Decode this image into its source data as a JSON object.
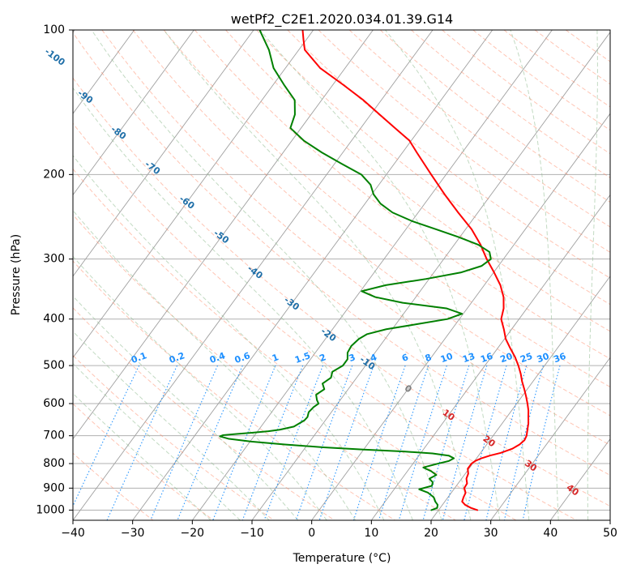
{
  "chart_data": {
    "type": "line",
    "subtype": "skew-T log-P diagram",
    "title": "wetPf2_C2E1.2020.034.01.39.G14",
    "xlabel": "Temperature (°C)",
    "ylabel": "Pressure (hPa)",
    "xlim": [
      -40,
      50
    ],
    "ylim": [
      1050,
      100
    ],
    "y_scale": "log",
    "x_ticks": [
      -40,
      -30,
      -20,
      -10,
      0,
      10,
      20,
      30,
      40,
      50
    ],
    "y_ticks": [
      100,
      200,
      300,
      400,
      500,
      600,
      700,
      800,
      900,
      1000
    ],
    "grid": true,
    "colors": {
      "temperature": "#ff0000",
      "dewpoint": "#008000",
      "dry_adiabats": "#ff8c69",
      "moist_adiabats": "#8fbc8f",
      "mixing_ratio": "#1e90ff",
      "isotherm": "#808080",
      "isotherm_label": "#1f6fa8",
      "warm_isotherm_label": "#d62728",
      "frame": "#000000"
    },
    "isotherm_labels": [
      {
        "value": -100,
        "pressure": 114
      },
      {
        "value": -90,
        "pressure": 138
      },
      {
        "value": -80,
        "pressure": 164
      },
      {
        "value": -70,
        "pressure": 194
      },
      {
        "value": -60,
        "pressure": 229
      },
      {
        "value": -50,
        "pressure": 270
      },
      {
        "value": -40,
        "pressure": 320
      },
      {
        "value": -30,
        "pressure": 372
      },
      {
        "value": -20,
        "pressure": 432
      },
      {
        "value": -10,
        "pressure": 495
      },
      {
        "value": 0,
        "pressure": 560
      },
      {
        "value": 10,
        "pressure": 635
      },
      {
        "value": 20,
        "pressure": 720
      },
      {
        "value": 30,
        "pressure": 810
      },
      {
        "value": 40,
        "pressure": 910
      }
    ],
    "mixing_ratio_labels": [
      "0.1",
      "0.2",
      "0.4",
      "0.6",
      "1",
      "1.5",
      "2",
      "3",
      "4",
      "6",
      "8",
      "10",
      "13",
      "16",
      "20",
      "25",
      "30",
      "36"
    ],
    "mixing_ratio_label_pressure": 500,
    "series": [
      {
        "name": "temperature",
        "pressure": [
          1000,
          990,
          975,
          960,
          940,
          920,
          900,
          880,
          860,
          840,
          820,
          800,
          790,
          780,
          770,
          760,
          745,
          730,
          715,
          700,
          680,
          660,
          640,
          620,
          600,
          580,
          560,
          540,
          520,
          500,
          480,
          460,
          440,
          420,
          400,
          380,
          360,
          340,
          320,
          300,
          280,
          260,
          240,
          220,
          200,
          180,
          170,
          160,
          150,
          140,
          130,
          120,
          110,
          105,
          100
        ],
        "temperature": [
          26.5,
          25.2,
          23.8,
          22.9,
          22.6,
          22.4,
          21.6,
          21.5,
          20.8,
          20.5,
          19.8,
          19.8,
          20.1,
          20.8,
          21.9,
          23.4,
          24.8,
          25.5,
          25.8,
          25.6,
          25.0,
          24.4,
          23.6,
          22.8,
          21.8,
          20.7,
          19.5,
          18.2,
          17.0,
          15.6,
          14.0,
          12.1,
          10.2,
          8.7,
          7.0,
          6.1,
          4.7,
          2.7,
          0.1,
          -2.8,
          -5.6,
          -9.0,
          -13.3,
          -17.8,
          -22.5,
          -27.6,
          -30.3,
          -34.3,
          -38.5,
          -43.0,
          -48.3,
          -54.2,
          -59.0,
          -60.4,
          -61.8
        ]
      },
      {
        "name": "dewpoint",
        "pressure": [
          1000,
          990,
          975,
          960,
          940,
          920,
          905,
          890,
          875,
          860,
          845,
          830,
          815,
          800,
          790,
          780,
          770,
          762,
          755,
          748,
          740,
          730,
          720,
          710,
          702,
          698,
          694,
          690,
          685,
          680,
          670,
          660,
          650,
          640,
          625,
          610,
          600,
          590,
          575,
          560,
          545,
          530,
          515,
          500,
          485,
          470,
          455,
          440,
          430,
          420,
          410,
          400,
          390,
          380,
          370,
          360,
          350,
          340,
          330,
          320,
          310,
          300,
          290,
          280,
          270,
          260,
          250,
          240,
          230,
          220,
          210,
          200,
          190,
          180,
          170,
          160,
          150,
          140,
          130,
          120,
          110,
          100
        ],
        "temperature": [
          18.8,
          19.5,
          19.2,
          18.4,
          17.6,
          16.1,
          14.2,
          15.9,
          15.6,
          14.6,
          15.3,
          14.0,
          12.2,
          14.2,
          15.7,
          16.2,
          15.0,
          12.0,
          7.0,
          0.0,
          -7.0,
          -13.8,
          -19.8,
          -24.0,
          -25.7,
          -25.3,
          -23.2,
          -20.8,
          -18.2,
          -16.5,
          -14.5,
          -14.0,
          -13.5,
          -13.4,
          -13.8,
          -13.6,
          -13.2,
          -13.9,
          -14.7,
          -14.0,
          -15.0,
          -14.3,
          -14.8,
          -13.8,
          -13.8,
          -14.6,
          -14.8,
          -14.4,
          -13.6,
          -11.0,
          -6.5,
          -2.0,
          -0.2,
          -3.5,
          -11.5,
          -16.8,
          -19.8,
          -16.5,
          -10.5,
          -5.5,
          -2.8,
          -2.1,
          -3.2,
          -6.0,
          -10.2,
          -15.0,
          -20.0,
          -24.3,
          -27.4,
          -29.7,
          -31.4,
          -34.2,
          -38.8,
          -43.5,
          -48.0,
          -51.8,
          -52.7,
          -54.5,
          -58.2,
          -62.0,
          -65.0,
          -69.0
        ]
      }
    ]
  }
}
